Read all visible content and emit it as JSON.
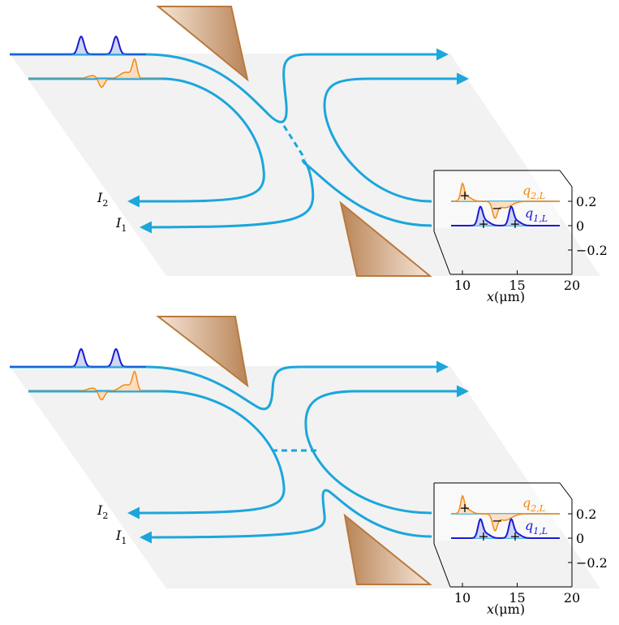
{
  "panels": [
    {
      "current_labels": [
        {
          "main": "I",
          "sub": "2"
        },
        {
          "main": "I",
          "sub": "1"
        }
      ],
      "inset": {
        "curve_labels": [
          {
            "main": "q",
            "sub": "2,L"
          },
          {
            "main": "q",
            "sub": "1,L"
          }
        ],
        "yticks": [
          0.2,
          0,
          {
            "value": -0.2,
            "label": "−0.2"
          }
        ],
        "xticks": [
          10,
          15,
          20
        ],
        "xlabel": {
          "main": "x",
          "unit": "(μm)"
        },
        "signs": [
          "+",
          "−",
          "+",
          "+"
        ]
      }
    },
    {
      "current_labels": [
        {
          "main": "I",
          "sub": "2"
        },
        {
          "main": "I",
          "sub": "1"
        }
      ],
      "inset": {
        "curve_labels": [
          {
            "main": "q",
            "sub": "2,L"
          },
          {
            "main": "q",
            "sub": "1,L"
          }
        ],
        "yticks": [
          0.2,
          0,
          {
            "value": -0.2,
            "label": "−0.2"
          }
        ],
        "xticks": [
          10,
          15,
          20
        ],
        "xlabel": {
          "main": "x",
          "unit": "(μm)"
        },
        "signs": [
          "+",
          "−",
          "+",
          "+"
        ]
      }
    }
  ]
}
